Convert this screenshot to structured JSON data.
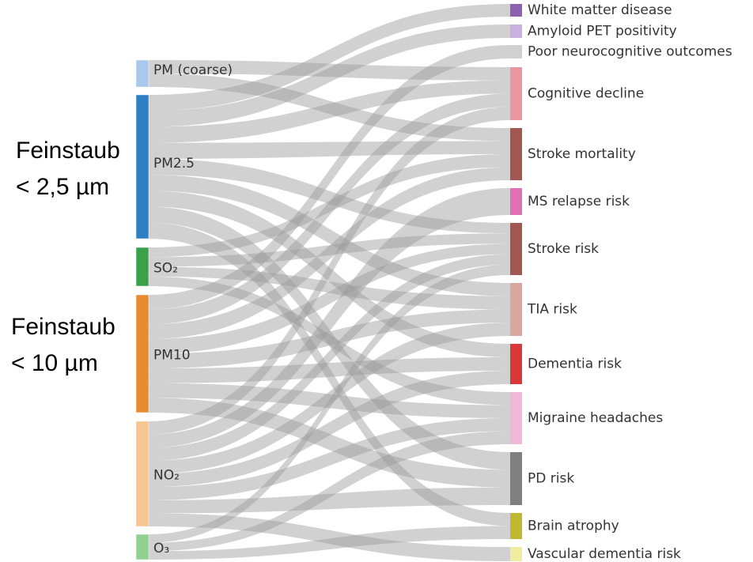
{
  "annotations": [
    "Feinstaub",
    "< 2,5 µm",
    "Feinstaub",
    "< 10 µm"
  ],
  "left": [
    {
      "label": "PM (coarse)",
      "color": "#aac8ee"
    },
    {
      "label": "PM2.5",
      "color": "#2f7fc4"
    },
    {
      "label": "SO₂",
      "color": "#3aa04a"
    },
    {
      "label": "PM10",
      "color": "#e88a30"
    },
    {
      "label": "NO₂",
      "color": "#f5c690"
    },
    {
      "label": "O₃",
      "color": "#90d090"
    }
  ],
  "right": [
    {
      "label": "White matter disease",
      "color": "#9060b0"
    },
    {
      "label": "Amyloid PET positivity",
      "color": "#c8b0e0"
    },
    {
      "label": "Poor neurocognitive outcomes",
      "color": "#d0d0d0"
    },
    {
      "label": "Cognitive decline",
      "color": "#e896a0"
    },
    {
      "label": "Stroke mortality",
      "color": "#a05850"
    },
    {
      "label": "MS relapse risk",
      "color": "#e070b8"
    },
    {
      "label": "Stroke risk",
      "color": "#a05850"
    },
    {
      "label": "TIA risk",
      "color": "#d8a8a0"
    },
    {
      "label": "Dementia risk",
      "color": "#d83838"
    },
    {
      "label": "Migraine headaches",
      "color": "#f0b8d8"
    },
    {
      "label": "PD risk",
      "color": "#808080"
    },
    {
      "label": "Brain atrophy",
      "color": "#c0b830"
    },
    {
      "label": "Vascular dementia risk",
      "color": "#f0eca0"
    }
  ],
  "links": [
    [
      0,
      3
    ],
    [
      0,
      4
    ],
    [
      1,
      0
    ],
    [
      1,
      1
    ],
    [
      1,
      3
    ],
    [
      1,
      4
    ],
    [
      1,
      6
    ],
    [
      1,
      7
    ],
    [
      1,
      8
    ],
    [
      1,
      10
    ],
    [
      1,
      11
    ],
    [
      2,
      4
    ],
    [
      2,
      6
    ],
    [
      2,
      7
    ],
    [
      2,
      9
    ],
    [
      3,
      2
    ],
    [
      3,
      3
    ],
    [
      3,
      4
    ],
    [
      3,
      6
    ],
    [
      3,
      7
    ],
    [
      3,
      8
    ],
    [
      3,
      9
    ],
    [
      3,
      10
    ],
    [
      4,
      3
    ],
    [
      4,
      5
    ],
    [
      4,
      6
    ],
    [
      4,
      7
    ],
    [
      4,
      8
    ],
    [
      4,
      9
    ],
    [
      4,
      10
    ],
    [
      4,
      12
    ],
    [
      5,
      6
    ],
    [
      5,
      9
    ],
    [
      5,
      11
    ]
  ]
}
